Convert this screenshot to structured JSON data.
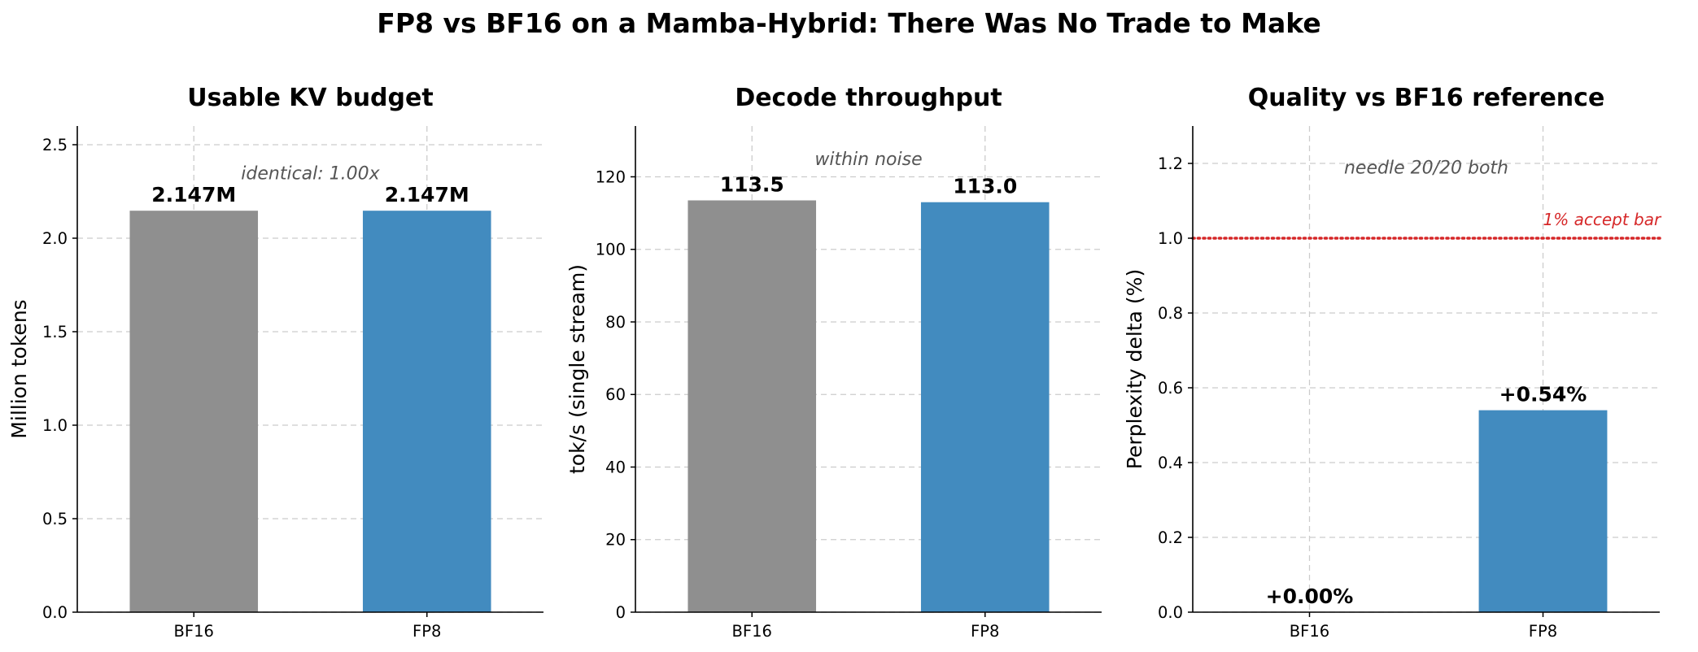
{
  "figure": {
    "title": "FP8 vs BF16 on a Mamba-Hybrid: There Was No Trade to Make"
  },
  "chart_data": [
    {
      "type": "bar",
      "title": "Usable KV budget",
      "xlabel": "",
      "ylabel": "Million tokens",
      "categories": [
        "BF16",
        "FP8"
      ],
      "values": [
        2.147,
        2.147
      ],
      "value_labels": [
        "2.147M",
        "2.147M"
      ],
      "bar_colors": [
        "#8f8f8f",
        "#428bbf"
      ],
      "ylim": [
        0,
        2.6
      ],
      "yticks": [
        0.0,
        0.5,
        1.0,
        1.5,
        2.0,
        2.5
      ],
      "ytick_labels": [
        "0.0",
        "0.5",
        "1.0",
        "1.5",
        "2.0",
        "2.5"
      ],
      "grid": true,
      "annotation": "identical: 1.00x",
      "annotation_y": 2.35
    },
    {
      "type": "bar",
      "title": "Decode throughput",
      "xlabel": "",
      "ylabel": "tok/s (single stream)",
      "categories": [
        "BF16",
        "FP8"
      ],
      "values": [
        113.5,
        113.0
      ],
      "value_labels": [
        "113.5",
        "113.0"
      ],
      "bar_colors": [
        "#8f8f8f",
        "#428bbf"
      ],
      "ylim": [
        0,
        134
      ],
      "yticks": [
        0,
        20,
        40,
        60,
        80,
        100,
        120
      ],
      "ytick_labels": [
        "0",
        "20",
        "40",
        "60",
        "80",
        "100",
        "120"
      ],
      "grid": true,
      "annotation": "within noise",
      "annotation_y": 125
    },
    {
      "type": "bar",
      "title": "Quality vs BF16 reference",
      "xlabel": "",
      "ylabel": "Perplexity delta (%)",
      "categories": [
        "BF16",
        "FP8"
      ],
      "values": [
        0.0,
        0.54
      ],
      "value_labels": [
        "+0.00%",
        "+0.54%"
      ],
      "bar_colors": [
        "#8f8f8f",
        "#428bbf"
      ],
      "ylim": [
        0,
        1.3
      ],
      "yticks": [
        0.0,
        0.2,
        0.4,
        0.6,
        0.8,
        1.0,
        1.2
      ],
      "ytick_labels": [
        "0.0",
        "0.2",
        "0.4",
        "0.6",
        "0.8",
        "1.0",
        "1.2"
      ],
      "grid": true,
      "annotation": "needle 20/20 both",
      "annotation_y": 1.19,
      "reference_line": {
        "value": 1.0,
        "label": "1% accept bar",
        "color": "#d62728"
      }
    }
  ]
}
